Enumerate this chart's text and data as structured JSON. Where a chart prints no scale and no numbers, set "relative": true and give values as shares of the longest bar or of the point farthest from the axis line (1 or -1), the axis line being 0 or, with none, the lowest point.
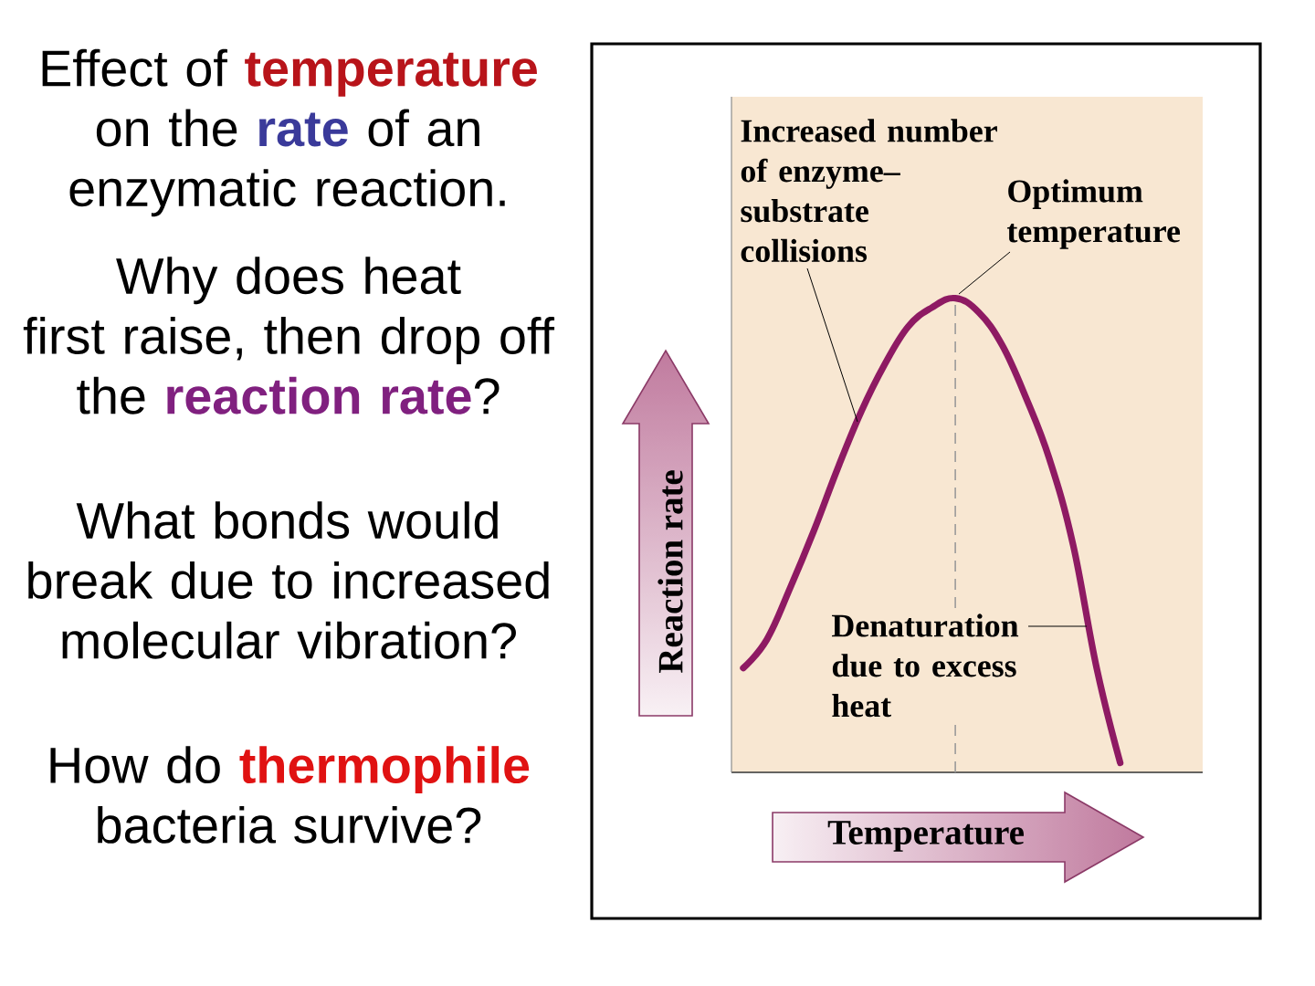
{
  "chart_data": {
    "type": "line",
    "title": "Effect of **temperature**\non the **rate** of an\nenzymatic reaction.",
    "xlabel": "Temperature",
    "ylabel": "Reaction rate",
    "relative": true,
    "categories": [
      null,
      null,
      null,
      null,
      null,
      null,
      null,
      null,
      null,
      null,
      null,
      null,
      null,
      null,
      null,
      null,
      null,
      null,
      null,
      null
    ],
    "values": [
      0.22,
      0.28,
      0.39,
      0.51,
      0.64,
      0.76,
      0.86,
      0.94,
      0.98,
      1,
      0.97,
      0.9,
      0.79,
      0.66,
      0.48,
      0.22,
      0.02,
      null,
      null,
      null
    ],
    "color": "#8E1A63",
    "annotations": [
      "Why does heat\nfirst raise, then drop off\nthe **reaction rate**?",
      "What bonds would\nbreak due to increased\nmolecular vibration?",
      "How do **thermophile**\nbacteria survive?",
      "Increased number\nof enzyme–\nsubstrate\ncollisions",
      "Optimum\ntemperature",
      "Denaturation\ndue to excess\nheat"
    ]
  }
}
